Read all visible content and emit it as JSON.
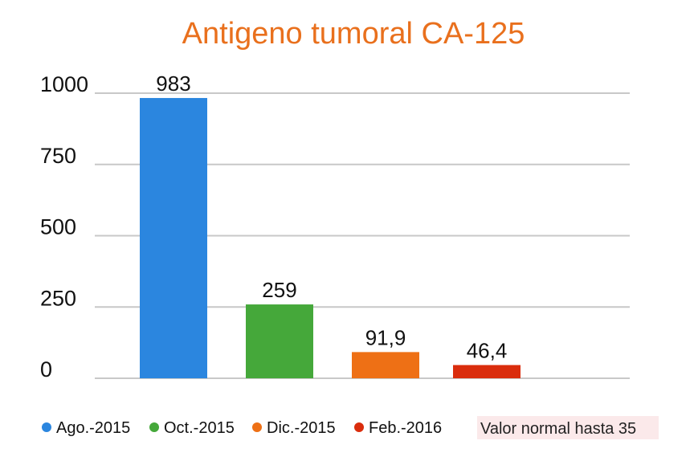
{
  "chart_data": {
    "type": "bar",
    "title": "Antigeno tumoral CA-125",
    "categories": [
      "Ago.-2015",
      "Oct.-2015",
      "Dic.-2015",
      "Feb.-2016"
    ],
    "values": [
      983,
      259,
      91.9,
      46.4
    ],
    "value_labels": [
      "983",
      "259",
      "91,9",
      "46,4"
    ],
    "colors": [
      "#2b86df",
      "#45a83a",
      "#ee7015",
      "#da2d0d"
    ],
    "yticks": [
      "1000",
      "750",
      "500",
      "250",
      "0"
    ],
    "ytick_values": [
      1000,
      750,
      500,
      250,
      0
    ],
    "ylim": [
      0,
      1000
    ],
    "xlabel": "",
    "ylabel": "",
    "grid": true,
    "legend_position": "bottom",
    "note": "Valor normal hasta 35"
  },
  "colors": {
    "title": "#e9701d",
    "grid": "#c8c8c8",
    "note_background": "#fbe9ea"
  }
}
